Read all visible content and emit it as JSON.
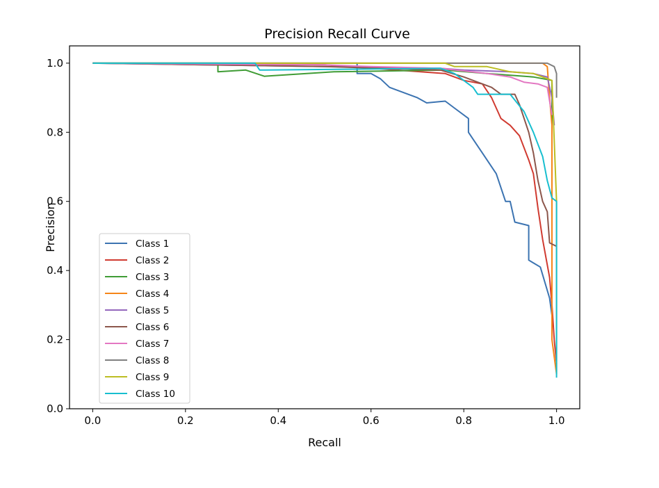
{
  "chart_data": {
    "type": "line",
    "title": "Precision Recall Curve",
    "xlabel": "Recall",
    "ylabel": "Precision",
    "xlim": [
      -0.05,
      1.05
    ],
    "ylim": [
      0.0,
      1.05
    ],
    "xticks": [
      0.0,
      0.2,
      0.4,
      0.6,
      0.8,
      1.0
    ],
    "xtick_labels": [
      "0.0",
      "0.2",
      "0.4",
      "0.6",
      "0.8",
      "1.0"
    ],
    "yticks": [
      0.0,
      0.2,
      0.4,
      0.6,
      0.8,
      1.0
    ],
    "ytick_labels": [
      "0.0",
      "0.2",
      "0.4",
      "0.6",
      "0.8",
      "1.0"
    ],
    "grid": false,
    "legend_position": "lower-left",
    "series": [
      {
        "name": "Class 1",
        "color": "#3b73b1",
        "points": [
          [
            0,
            1
          ],
          [
            0.57,
            1
          ],
          [
            0.57,
            0.97
          ],
          [
            0.6,
            0.97
          ],
          [
            0.62,
            0.955
          ],
          [
            0.64,
            0.93
          ],
          [
            0.7,
            0.9
          ],
          [
            0.72,
            0.885
          ],
          [
            0.76,
            0.89
          ],
          [
            0.78,
            0.87
          ],
          [
            0.81,
            0.84
          ],
          [
            0.81,
            0.8
          ],
          [
            0.82,
            0.78
          ],
          [
            0.84,
            0.74
          ],
          [
            0.87,
            0.68
          ],
          [
            0.89,
            0.6
          ],
          [
            0.9,
            0.6
          ],
          [
            0.91,
            0.54
          ],
          [
            0.94,
            0.53
          ],
          [
            0.94,
            0.43
          ],
          [
            0.965,
            0.41
          ],
          [
            0.985,
            0.32
          ],
          [
            0.99,
            0.27
          ]
        ]
      },
      {
        "name": "Class 2",
        "color": "#d03a30",
        "points": [
          [
            0,
            1
          ],
          [
            0.5,
            0.995
          ],
          [
            0.76,
            0.97
          ],
          [
            0.8,
            0.95
          ],
          [
            0.84,
            0.94
          ],
          [
            0.86,
            0.9
          ],
          [
            0.88,
            0.84
          ],
          [
            0.9,
            0.82
          ],
          [
            0.92,
            0.79
          ],
          [
            0.94,
            0.72
          ],
          [
            0.95,
            0.68
          ],
          [
            0.96,
            0.58
          ],
          [
            0.97,
            0.49
          ],
          [
            0.985,
            0.38
          ],
          [
            0.99,
            0.3
          ],
          [
            0.995,
            0.2
          ],
          [
            1.0,
            0.13
          ]
        ]
      },
      {
        "name": "Class 3",
        "color": "#3f9c35",
        "points": [
          [
            0,
            1
          ],
          [
            0.27,
            1
          ],
          [
            0.27,
            0.975
          ],
          [
            0.33,
            0.98
          ],
          [
            0.37,
            0.962
          ],
          [
            0.52,
            0.975
          ],
          [
            0.76,
            0.98
          ],
          [
            0.85,
            0.97
          ],
          [
            0.95,
            0.96
          ],
          [
            0.99,
            0.95
          ],
          [
            0.99,
            0.82
          ]
        ]
      },
      {
        "name": "Class 4",
        "color": "#f58518",
        "points": [
          [
            0,
            1
          ],
          [
            0.97,
            1
          ],
          [
            0.98,
            0.99
          ],
          [
            0.985,
            0.9
          ],
          [
            0.99,
            0.82
          ],
          [
            0.99,
            0.2
          ],
          [
            1.0,
            0.1
          ]
        ]
      },
      {
        "name": "Class 5",
        "color": "#9467bd",
        "points": [
          [
            0,
            1
          ],
          [
            0.5,
            0.99
          ],
          [
            0.75,
            0.985
          ],
          [
            0.8,
            0.98
          ],
          [
            0.9,
            0.975
          ],
          [
            0.95,
            0.97
          ],
          [
            0.98,
            0.96
          ],
          [
            0.99,
            0.9
          ],
          [
            0.995,
            0.82
          ]
        ]
      },
      {
        "name": "Class 6",
        "color": "#8c564b",
        "points": [
          [
            0,
            1
          ],
          [
            0.5,
            0.99
          ],
          [
            0.75,
            0.98
          ],
          [
            0.8,
            0.96
          ],
          [
            0.82,
            0.95
          ],
          [
            0.86,
            0.93
          ],
          [
            0.88,
            0.91
          ],
          [
            0.91,
            0.91
          ],
          [
            0.92,
            0.88
          ],
          [
            0.94,
            0.8
          ],
          [
            0.95,
            0.74
          ],
          [
            0.96,
            0.66
          ],
          [
            0.97,
            0.6
          ],
          [
            0.98,
            0.57
          ],
          [
            0.985,
            0.48
          ],
          [
            1.0,
            0.47
          ]
        ]
      },
      {
        "name": "Class 7",
        "color": "#e377c2",
        "points": [
          [
            0,
            1
          ],
          [
            0.5,
            0.995
          ],
          [
            0.6,
            0.99
          ],
          [
            0.75,
            0.985
          ],
          [
            0.85,
            0.97
          ],
          [
            0.9,
            0.96
          ],
          [
            0.93,
            0.945
          ],
          [
            0.96,
            0.94
          ],
          [
            0.98,
            0.93
          ],
          [
            0.99,
            0.85
          ]
        ]
      },
      {
        "name": "Class 8",
        "color": "#7f7f7f",
        "points": [
          [
            0,
            1
          ],
          [
            0.98,
            1
          ],
          [
            0.995,
            0.99
          ],
          [
            1.0,
            0.97
          ],
          [
            1.0,
            0.9
          ]
        ]
      },
      {
        "name": "Class 9",
        "color": "#bcbd22",
        "points": [
          [
            0,
            1
          ],
          [
            0.76,
            1
          ],
          [
            0.78,
            0.99
          ],
          [
            0.85,
            0.99
          ],
          [
            0.9,
            0.975
          ],
          [
            0.95,
            0.97
          ],
          [
            0.99,
            0.95
          ],
          [
            1.0,
            0.6
          ],
          [
            1.0,
            0.1
          ]
        ]
      },
      {
        "name": "Class 10",
        "color": "#17becf",
        "points": [
          [
            0,
            1
          ],
          [
            0.35,
            1
          ],
          [
            0.36,
            0.98
          ],
          [
            0.75,
            0.985
          ],
          [
            0.78,
            0.97
          ],
          [
            0.82,
            0.93
          ],
          [
            0.83,
            0.91
          ],
          [
            0.9,
            0.91
          ],
          [
            0.93,
            0.86
          ],
          [
            0.95,
            0.8
          ],
          [
            0.97,
            0.73
          ],
          [
            0.98,
            0.66
          ],
          [
            0.99,
            0.61
          ],
          [
            1.0,
            0.6
          ],
          [
            1.0,
            0.09
          ]
        ]
      }
    ]
  }
}
